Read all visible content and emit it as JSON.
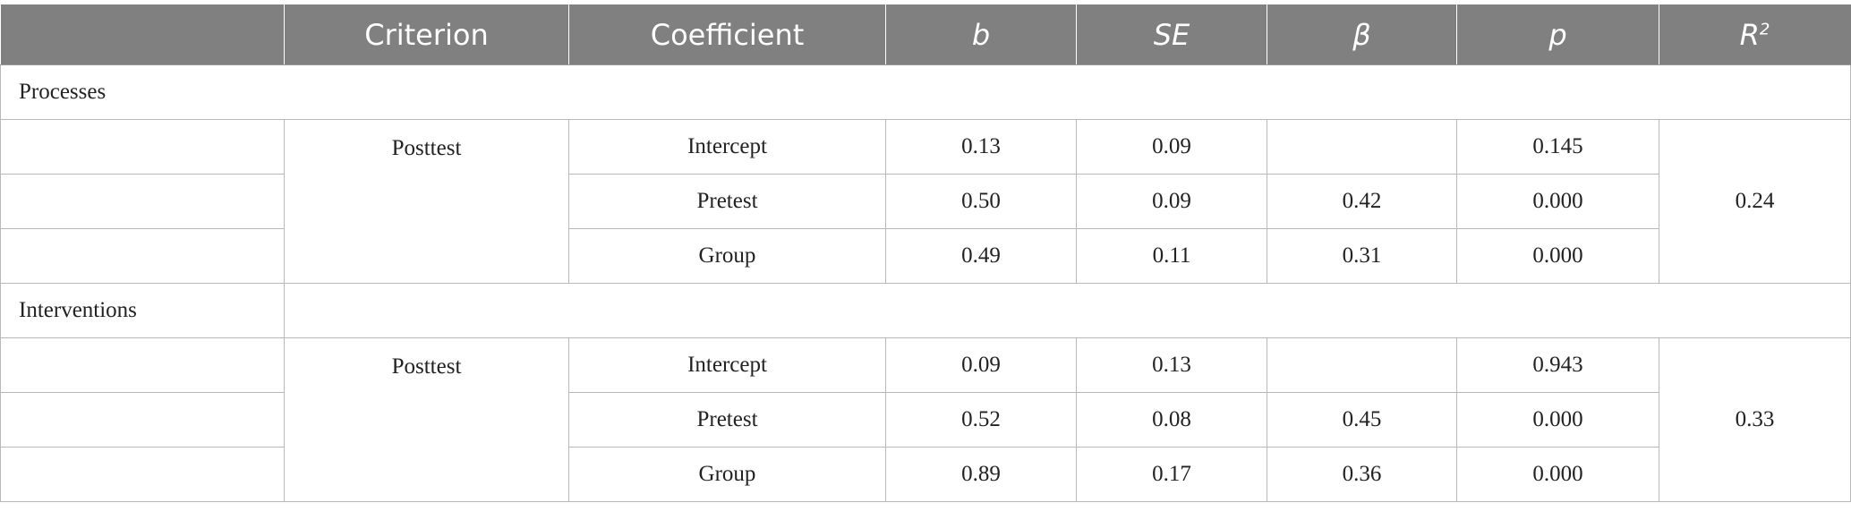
{
  "table": {
    "headers": [
      "",
      "Criterion",
      "Coefficient",
      "b",
      "SE",
      "β",
      "p",
      "R"
    ],
    "r2_superscript": "2",
    "groups": [
      {
        "section": "Processes",
        "criterion": "Posttest",
        "r2": "0.24",
        "rows": [
          {
            "coefficient": "Intercept",
            "b": "0.13",
            "se": "0.09",
            "beta": "",
            "p": "0.145"
          },
          {
            "coefficient": "Pretest",
            "b": "0.50",
            "se": "0.09",
            "beta": "0.42",
            "p": "0.000"
          },
          {
            "coefficient": "Group",
            "b": "0.49",
            "se": "0.11",
            "beta": "0.31",
            "p": "0.000"
          }
        ]
      },
      {
        "section": "Interventions",
        "criterion": "Posttest",
        "r2": "0.33",
        "rows": [
          {
            "coefficient": "Intercept",
            "b": "0.09",
            "se": "0.13",
            "beta": "",
            "p": "0.943"
          },
          {
            "coefficient": "Pretest",
            "b": "0.52",
            "se": "0.08",
            "beta": "0.45",
            "p": "0.000"
          },
          {
            "coefficient": "Group",
            "b": "0.89",
            "se": "0.17",
            "beta": "0.36",
            "p": "0.000"
          }
        ]
      }
    ]
  }
}
